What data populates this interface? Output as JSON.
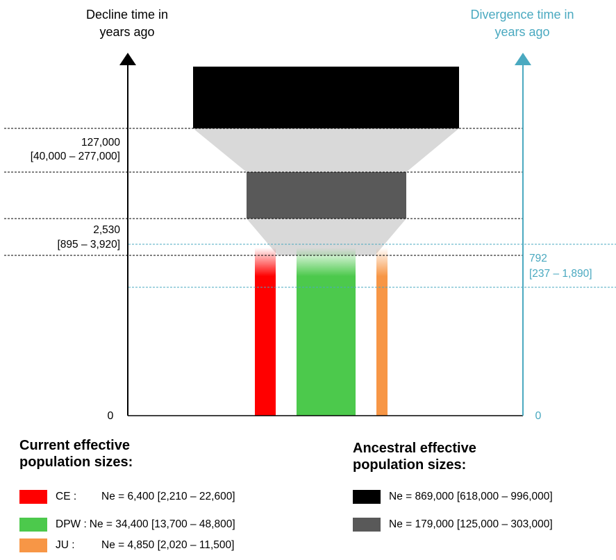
{
  "diagram": {
    "left_axis": {
      "title": [
        "Decline time in",
        "years ago"
      ],
      "zero_label": "0"
    },
    "right_axis": {
      "title": [
        "Divergence time in",
        "years ago"
      ],
      "zero_label": "0",
      "color": "#4aa9c0"
    },
    "decline_1": {
      "value": "127,000",
      "ci": "[40,000 – 277,000]"
    },
    "decline_2": {
      "value": "2,530",
      "ci": "[895 – 3,920]"
    },
    "divergence": {
      "value": "792",
      "ci": "[237 – 1,890]"
    },
    "colors": {
      "ancestral_1": "#000000",
      "ancestral_2": "#595959",
      "funnel": "#d9d9d9",
      "CE": "#ff0000",
      "DPW": "#4cc94c",
      "JU": "#f79646"
    }
  },
  "legend_current": {
    "title": [
      "Current effective",
      "population sizes:"
    ],
    "rows": [
      {
        "pop": "CE :",
        "text": "Ne = 6,400 [2,210 – 22,600]",
        "color": "#ff0000"
      },
      {
        "pop": "DPW :",
        "text": "Ne = 34,400 [13,700 – 48,800]",
        "color": "#4cc94c"
      },
      {
        "pop": "JU :",
        "text": "Ne = 4,850 [2,020 – 11,500]",
        "color": "#f79646"
      }
    ]
  },
  "legend_ancestral": {
    "title": [
      "Ancestral effective",
      "population sizes:"
    ],
    "rows": [
      {
        "text": "Ne = 869,000 [618,000 – 996,000]",
        "color": "#000000"
      },
      {
        "text": "Ne = 179,000 [125,000 – 303,000]",
        "color": "#595959"
      }
    ]
  }
}
